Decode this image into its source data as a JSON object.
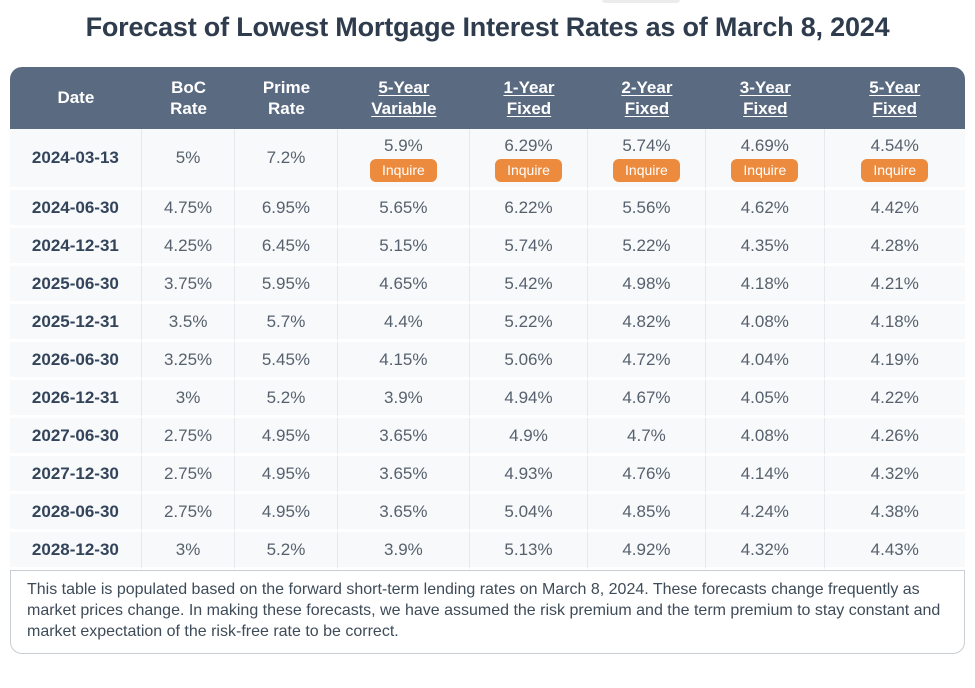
{
  "title": "Forecast of Lowest Mortgage Interest Rates as of March 8, 2024",
  "table": {
    "columns": [
      {
        "id": "date",
        "line1": "Date",
        "line2": "",
        "link": false
      },
      {
        "id": "boc-rate",
        "line1": "BoC",
        "line2": "Rate",
        "link": false
      },
      {
        "id": "prime-rate",
        "line1": "Prime",
        "line2": "Rate",
        "link": false
      },
      {
        "id": "5yr-variable",
        "line1": "5-Year",
        "line2": "Variable",
        "link": true
      },
      {
        "id": "1yr-fixed",
        "line1": "1-Year",
        "line2": "Fixed",
        "link": true
      },
      {
        "id": "2yr-fixed",
        "line1": "2-Year",
        "line2": "Fixed",
        "link": true
      },
      {
        "id": "3yr-fixed",
        "line1": "3-Year",
        "line2": "Fixed",
        "link": true
      },
      {
        "id": "5yr-fixed",
        "line1": "5-Year",
        "line2": "Fixed",
        "link": true
      }
    ],
    "inquire_label": "Inquire",
    "rows": [
      {
        "date": "2024-03-13",
        "boc": "5%",
        "prime": "7.2%",
        "rates": [
          "5.9%",
          "6.29%",
          "5.74%",
          "4.69%",
          "4.54%"
        ],
        "inquire": true
      },
      {
        "date": "2024-06-30",
        "boc": "4.75%",
        "prime": "6.95%",
        "rates": [
          "5.65%",
          "6.22%",
          "5.56%",
          "4.62%",
          "4.42%"
        ],
        "inquire": false
      },
      {
        "date": "2024-12-31",
        "boc": "4.25%",
        "prime": "6.45%",
        "rates": [
          "5.15%",
          "5.74%",
          "5.22%",
          "4.35%",
          "4.28%"
        ],
        "inquire": false
      },
      {
        "date": "2025-06-30",
        "boc": "3.75%",
        "prime": "5.95%",
        "rates": [
          "4.65%",
          "5.42%",
          "4.98%",
          "4.18%",
          "4.21%"
        ],
        "inquire": false
      },
      {
        "date": "2025-12-31",
        "boc": "3.5%",
        "prime": "5.7%",
        "rates": [
          "4.4%",
          "5.22%",
          "4.82%",
          "4.08%",
          "4.18%"
        ],
        "inquire": false
      },
      {
        "date": "2026-06-30",
        "boc": "3.25%",
        "prime": "5.45%",
        "rates": [
          "4.15%",
          "5.06%",
          "4.72%",
          "4.04%",
          "4.19%"
        ],
        "inquire": false
      },
      {
        "date": "2026-12-31",
        "boc": "3%",
        "prime": "5.2%",
        "rates": [
          "3.9%",
          "4.94%",
          "4.67%",
          "4.05%",
          "4.22%"
        ],
        "inquire": false
      },
      {
        "date": "2027-06-30",
        "boc": "2.75%",
        "prime": "4.95%",
        "rates": [
          "3.65%",
          "4.9%",
          "4.7%",
          "4.08%",
          "4.26%"
        ],
        "inquire": false
      },
      {
        "date": "2027-12-30",
        "boc": "2.75%",
        "prime": "4.95%",
        "rates": [
          "3.65%",
          "4.93%",
          "4.76%",
          "4.14%",
          "4.32%"
        ],
        "inquire": false
      },
      {
        "date": "2028-06-30",
        "boc": "2.75%",
        "prime": "4.95%",
        "rates": [
          "3.65%",
          "5.04%",
          "4.85%",
          "4.24%",
          "4.38%"
        ],
        "inquire": false
      },
      {
        "date": "2028-12-30",
        "boc": "3%",
        "prime": "5.2%",
        "rates": [
          "3.9%",
          "5.13%",
          "4.92%",
          "4.32%",
          "4.43%"
        ],
        "inquire": false
      }
    ]
  },
  "footer_note": "This table is populated based on the forward short-term lending rates on March 8, 2024. These forecasts change frequently as market prices change. In making these forecasts, we have assumed the risk premium and the term premium to stay constant and market expectation of the risk-free rate to be correct.",
  "colors": {
    "header_bg": "#5a6a81",
    "accent_orange": "#ec8a3d",
    "row_bg": "#f7f9fa",
    "title_text": "#2e3c4e"
  }
}
